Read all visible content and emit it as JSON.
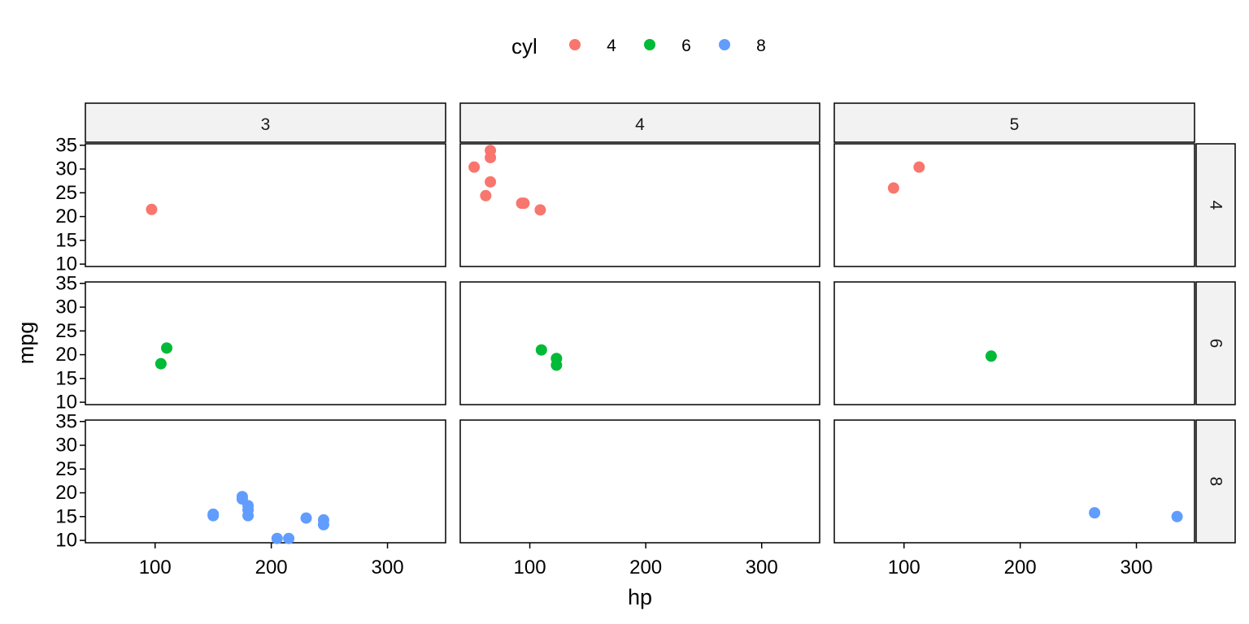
{
  "chart_data": {
    "type": "scatter",
    "xlabel": "hp",
    "ylabel": "mpg",
    "xlim": [
      40,
      350
    ],
    "ylim": [
      9.5,
      35.3
    ],
    "x_ticks": [
      100,
      200,
      300
    ],
    "y_ticks": [
      10,
      15,
      20,
      25,
      30,
      35
    ],
    "grid": false,
    "legend": {
      "title": "cyl",
      "position": "top",
      "entries": [
        {
          "label": "4",
          "color": "#F8766D"
        },
        {
          "label": "6",
          "color": "#00BA38"
        },
        {
          "label": "8",
          "color": "#619CFF"
        }
      ]
    },
    "facet_columns": [
      "3",
      "4",
      "5"
    ],
    "facet_rows": [
      "4",
      "6",
      "8"
    ],
    "panels": [
      {
        "row": "4",
        "col": "3",
        "series": "4",
        "points": [
          [
            97,
            21.5
          ]
        ]
      },
      {
        "row": "4",
        "col": "4",
        "series": "4",
        "points": [
          [
            66,
            33.9
          ],
          [
            66,
            32.4
          ],
          [
            52,
            30.4
          ],
          [
            62,
            24.4
          ],
          [
            95,
            22.8
          ],
          [
            93,
            22.8
          ],
          [
            66,
            27.3
          ],
          [
            109,
            21.4
          ]
        ]
      },
      {
        "row": "4",
        "col": "5",
        "series": "4",
        "points": [
          [
            91,
            26.0
          ],
          [
            113,
            30.4
          ]
        ]
      },
      {
        "row": "6",
        "col": "3",
        "series": "6",
        "points": [
          [
            110,
            21.4
          ],
          [
            105,
            18.1
          ]
        ]
      },
      {
        "row": "6",
        "col": "4",
        "series": "6",
        "points": [
          [
            110,
            21.0
          ],
          [
            123,
            19.2
          ],
          [
            123,
            17.8
          ]
        ]
      },
      {
        "row": "6",
        "col": "5",
        "series": "6",
        "points": [
          [
            175,
            19.7
          ]
        ]
      },
      {
        "row": "8",
        "col": "3",
        "series": "8",
        "points": [
          [
            175,
            18.7
          ],
          [
            245,
            14.3
          ],
          [
            180,
            16.4
          ],
          [
            180,
            17.3
          ],
          [
            180,
            15.2
          ],
          [
            205,
            10.4
          ],
          [
            215,
            10.4
          ],
          [
            230,
            14.7
          ],
          [
            150,
            15.5
          ],
          [
            150,
            15.2
          ],
          [
            245,
            13.3
          ],
          [
            175,
            19.2
          ]
        ]
      },
      {
        "row": "8",
        "col": "4",
        "series": "8",
        "points": []
      },
      {
        "row": "8",
        "col": "5",
        "series": "8",
        "points": [
          [
            264,
            15.8
          ],
          [
            335,
            15.0
          ]
        ]
      }
    ]
  }
}
